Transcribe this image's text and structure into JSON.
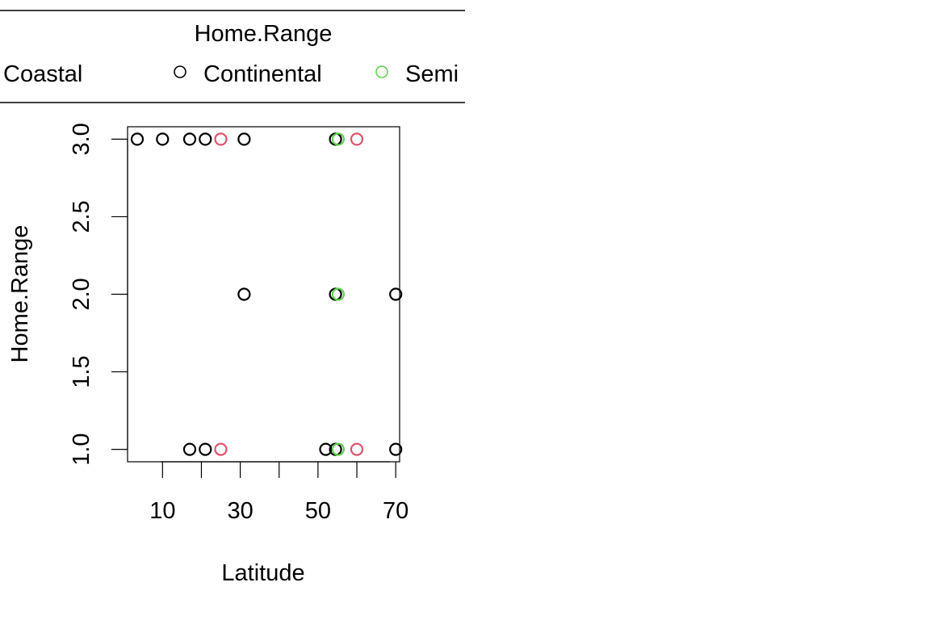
{
  "chart_data": {
    "type": "scatter",
    "xlabel": "Latitude",
    "ylabel": "Home.Range",
    "xlim": [
      1,
      71
    ],
    "ylim": [
      0.92,
      3.08
    ],
    "x_ticks": [
      10,
      20,
      30,
      40,
      50,
      60,
      70
    ],
    "x_tick_labels": [
      "10",
      "",
      "30",
      "",
      "50",
      "",
      "70"
    ],
    "y_ticks": [
      1.0,
      1.5,
      2.0,
      2.5,
      3.0
    ],
    "y_tick_labels": [
      "1.0",
      "1.5",
      "2.0",
      "2.5",
      "3.0"
    ],
    "legend": {
      "title": "Home.Range",
      "placement": "top (outside plot, clipped on the right)",
      "entries": [
        {
          "label": "Coastal",
          "color": "#df536b"
        },
        {
          "label": "Continental",
          "color": "#000000"
        },
        {
          "label": "Semi",
          "color": "#61d04f"
        }
      ]
    },
    "series": [
      {
        "name": "Continental",
        "color": "#000000",
        "points": [
          [
            3.5,
            3
          ],
          [
            10,
            3
          ],
          [
            17,
            3
          ],
          [
            21,
            3
          ],
          [
            31,
            3
          ],
          [
            54.5,
            3
          ],
          [
            31,
            2
          ],
          [
            54.5,
            2
          ],
          [
            70,
            2
          ],
          [
            17,
            1
          ],
          [
            21,
            1
          ],
          [
            52,
            1
          ],
          [
            54.5,
            1
          ],
          [
            70,
            1
          ]
        ]
      },
      {
        "name": "Coastal",
        "color": "#df536b",
        "points": [
          [
            25,
            3
          ],
          [
            60,
            3
          ],
          [
            25,
            1
          ],
          [
            60,
            1
          ]
        ]
      },
      {
        "name": "Semi",
        "color": "#61d04f",
        "points": [
          [
            55.2,
            3
          ],
          [
            55.2,
            2
          ],
          [
            55.2,
            1
          ]
        ]
      }
    ]
  }
}
